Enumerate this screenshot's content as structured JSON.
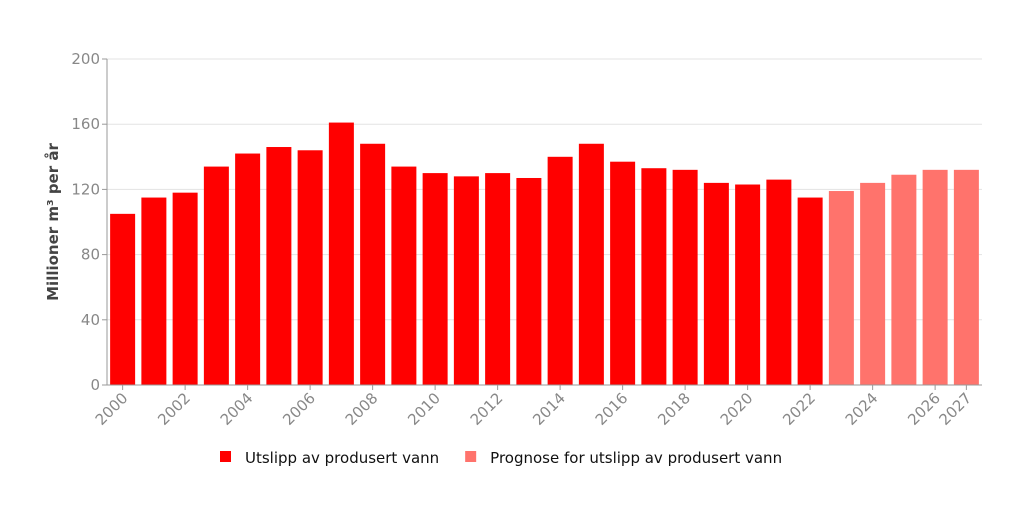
{
  "chart_data": {
    "type": "bar",
    "title": "",
    "xlabel": "",
    "ylabel": "Millioner m³ per år",
    "ylim": [
      0,
      200
    ],
    "yticks": [
      0,
      40,
      80,
      120,
      160,
      200
    ],
    "grid": true,
    "legend_position": "bottom-center",
    "categories": [
      "2000",
      "2001",
      "2002",
      "2003",
      "2004",
      "2005",
      "2006",
      "2007",
      "2008",
      "2009",
      "2010",
      "2011",
      "2012",
      "2013",
      "2014",
      "2015",
      "2016",
      "2017",
      "2018",
      "2019",
      "2020",
      "2021",
      "2022",
      "2023",
      "2024",
      "2025",
      "2026",
      "2027"
    ],
    "xtick_labels": [
      "2000",
      "2002",
      "2004",
      "2006",
      "2008",
      "2010",
      "2012",
      "2014",
      "2016",
      "2018",
      "2020",
      "2022",
      "2024",
      "2026",
      "2027"
    ],
    "series": [
      {
        "name": "Utslipp av produsert vann",
        "color": "#ff0000",
        "values": [
          105,
          115,
          118,
          134,
          142,
          146,
          144,
          161,
          148,
          134,
          130,
          128,
          130,
          127,
          140,
          148,
          137,
          133,
          132,
          124,
          123,
          126,
          115,
          null,
          null,
          null,
          null,
          null
        ]
      },
      {
        "name": "Prognose for utslipp av produsert vann",
        "color": "#ff736c",
        "values": [
          null,
          null,
          null,
          null,
          null,
          null,
          null,
          null,
          null,
          null,
          null,
          null,
          null,
          null,
          null,
          null,
          null,
          null,
          null,
          null,
          null,
          null,
          null,
          119,
          124,
          129,
          132,
          132
        ]
      }
    ]
  }
}
